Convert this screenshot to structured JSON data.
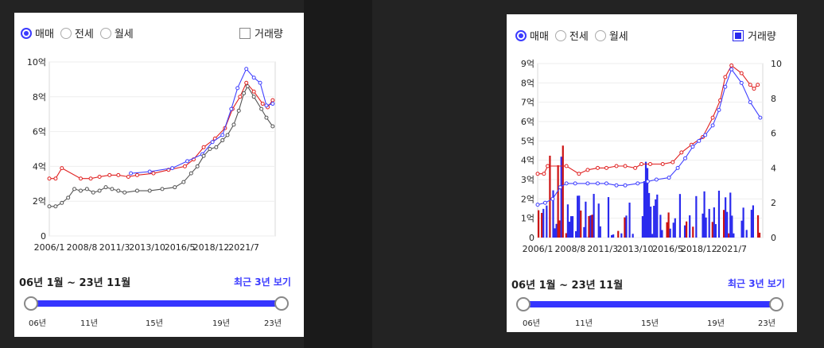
{
  "radio_options": [
    "매매",
    "전세",
    "월세"
  ],
  "selected_radio": "매매",
  "volume_label": "거래량",
  "left_panel": {
    "volume_checked": false
  },
  "right_panel": {
    "volume_checked": true
  },
  "range_label": "06년 1월 ~ 23년 11월",
  "recent_link": "최근 3년 보기",
  "slider_ticks": [
    "06년",
    "11년",
    "15년",
    "19년",
    "23년"
  ],
  "colors": {
    "accent": "#3535ff",
    "asking": "#e02020",
    "actual": "#4040ff",
    "history": "#555555",
    "volume_blue": "#2a2aee",
    "volume_red": "#cc1111"
  },
  "chart_data": [
    {
      "type": "line",
      "x_ticks": [
        "2006/1",
        "2008/8",
        "2011/3",
        "2013/10",
        "2016/5",
        "2018/12",
        "2021/7"
      ],
      "y_ticks": [
        "0",
        "2억",
        "4억",
        "6억",
        "8억",
        "10억"
      ],
      "ylim": [
        0,
        10
      ],
      "series": [
        {
          "color": "red",
          "points": [
            [
              2006.0,
              3.3
            ],
            [
              2006.5,
              3.3
            ],
            [
              2007.0,
              3.9
            ],
            [
              2008.5,
              3.3
            ],
            [
              2009.3,
              3.3
            ],
            [
              2010.0,
              3.4
            ],
            [
              2010.8,
              3.5
            ],
            [
              2011.5,
              3.5
            ],
            [
              2012.3,
              3.4
            ],
            [
              2013.0,
              3.5
            ],
            [
              2014.3,
              3.6
            ],
            [
              2015.5,
              3.8
            ],
            [
              2016.8,
              4.0
            ],
            [
              2017.5,
              4.4
            ],
            [
              2018.3,
              5.1
            ],
            [
              2019.2,
              5.6
            ],
            [
              2020.0,
              6.2
            ],
            [
              2020.6,
              7.3
            ],
            [
              2021.2,
              8.0
            ],
            [
              2021.7,
              8.8
            ],
            [
              2022.3,
              8.3
            ],
            [
              2023.0,
              7.6
            ],
            [
              2023.4,
              7.4
            ],
            [
              2023.8,
              7.8
            ]
          ]
        },
        {
          "color": "blue",
          "points": [
            [
              2012.5,
              3.6
            ],
            [
              2014.0,
              3.7
            ],
            [
              2015.8,
              3.9
            ],
            [
              2017.0,
              4.3
            ],
            [
              2018.2,
              4.7
            ],
            [
              2019.0,
              5.4
            ],
            [
              2019.8,
              5.8
            ],
            [
              2020.5,
              7.3
            ],
            [
              2021.0,
              8.5
            ],
            [
              2021.7,
              9.6
            ],
            [
              2022.3,
              9.1
            ],
            [
              2022.8,
              8.8
            ],
            [
              2023.3,
              7.5
            ],
            [
              2023.8,
              7.6
            ]
          ]
        },
        {
          "color": "gray",
          "points": [
            [
              2006.0,
              1.7
            ],
            [
              2006.5,
              1.7
            ],
            [
              2007.0,
              1.9
            ],
            [
              2007.5,
              2.2
            ],
            [
              2008.0,
              2.7
            ],
            [
              2008.5,
              2.6
            ],
            [
              2009.0,
              2.7
            ],
            [
              2009.5,
              2.5
            ],
            [
              2010.0,
              2.6
            ],
            [
              2010.5,
              2.8
            ],
            [
              2011.0,
              2.7
            ],
            [
              2011.5,
              2.6
            ],
            [
              2012.0,
              2.5
            ],
            [
              2013.0,
              2.6
            ],
            [
              2014.0,
              2.6
            ],
            [
              2015.0,
              2.7
            ],
            [
              2016.0,
              2.8
            ],
            [
              2016.7,
              3.1
            ],
            [
              2017.3,
              3.6
            ],
            [
              2017.8,
              4.0
            ],
            [
              2018.3,
              4.6
            ],
            [
              2018.8,
              5.0
            ],
            [
              2019.3,
              5.1
            ],
            [
              2019.8,
              5.5
            ],
            [
              2020.2,
              5.8
            ],
            [
              2020.7,
              6.4
            ],
            [
              2021.1,
              7.2
            ],
            [
              2021.5,
              8.2
            ],
            [
              2021.8,
              8.6
            ],
            [
              2022.3,
              8.0
            ],
            [
              2022.9,
              7.3
            ],
            [
              2023.3,
              6.8
            ],
            [
              2023.8,
              6.3
            ]
          ]
        }
      ]
    },
    {
      "type": "line",
      "x_ticks": [
        "2006/1",
        "2008/8",
        "2011/3",
        "2013/10",
        "2016/5",
        "2018/12",
        "2021/7"
      ],
      "y_ticks": [
        "0",
        "1억",
        "2억",
        "3억",
        "4억",
        "5억",
        "6억",
        "7억",
        "8억",
        "9억"
      ],
      "y2_ticks": [
        "0",
        "2",
        "4",
        "6",
        "8",
        "10"
      ],
      "ylim": [
        0,
        9
      ],
      "y2lim": [
        0,
        10
      ],
      "series": [
        {
          "color": "red",
          "points": [
            [
              2006.0,
              3.3
            ],
            [
              2006.5,
              3.3
            ],
            [
              2006.8,
              3.7
            ],
            [
              2008.3,
              3.7
            ],
            [
              2009.3,
              3.3
            ],
            [
              2010.0,
              3.5
            ],
            [
              2010.8,
              3.6
            ],
            [
              2011.5,
              3.6
            ],
            [
              2012.3,
              3.7
            ],
            [
              2013.0,
              3.7
            ],
            [
              2013.8,
              3.6
            ],
            [
              2014.3,
              3.8
            ],
            [
              2015.0,
              3.8
            ],
            [
              2016.0,
              3.8
            ],
            [
              2016.8,
              3.9
            ],
            [
              2017.5,
              4.4
            ],
            [
              2018.3,
              4.8
            ],
            [
              2019.2,
              5.2
            ],
            [
              2020.0,
              6.2
            ],
            [
              2020.6,
              7.1
            ],
            [
              2021.0,
              8.3
            ],
            [
              2021.5,
              8.9
            ],
            [
              2022.3,
              8.5
            ],
            [
              2023.0,
              7.9
            ],
            [
              2023.3,
              7.7
            ],
            [
              2023.6,
              7.9
            ]
          ]
        },
        {
          "color": "blue",
          "points": [
            [
              2006.0,
              1.7
            ],
            [
              2006.6,
              1.8
            ],
            [
              2007.2,
              2.0
            ],
            [
              2007.8,
              2.6
            ],
            [
              2008.3,
              2.8
            ],
            [
              2009.0,
              2.8
            ],
            [
              2010.0,
              2.8
            ],
            [
              2010.8,
              2.8
            ],
            [
              2011.5,
              2.8
            ],
            [
              2012.3,
              2.7
            ],
            [
              2013.0,
              2.7
            ],
            [
              2014.0,
              2.8
            ],
            [
              2014.8,
              2.9
            ],
            [
              2015.5,
              3.0
            ],
            [
              2016.5,
              3.1
            ],
            [
              2017.2,
              3.6
            ],
            [
              2017.8,
              4.1
            ],
            [
              2018.4,
              4.7
            ],
            [
              2018.9,
              5.0
            ],
            [
              2019.4,
              5.3
            ],
            [
              2020.0,
              5.8
            ],
            [
              2020.5,
              6.6
            ],
            [
              2021.0,
              7.8
            ],
            [
              2021.5,
              8.7
            ],
            [
              2022.3,
              8.0
            ],
            [
              2023.0,
              7.0
            ],
            [
              2023.8,
              6.2
            ]
          ]
        }
      ]
    }
  ]
}
